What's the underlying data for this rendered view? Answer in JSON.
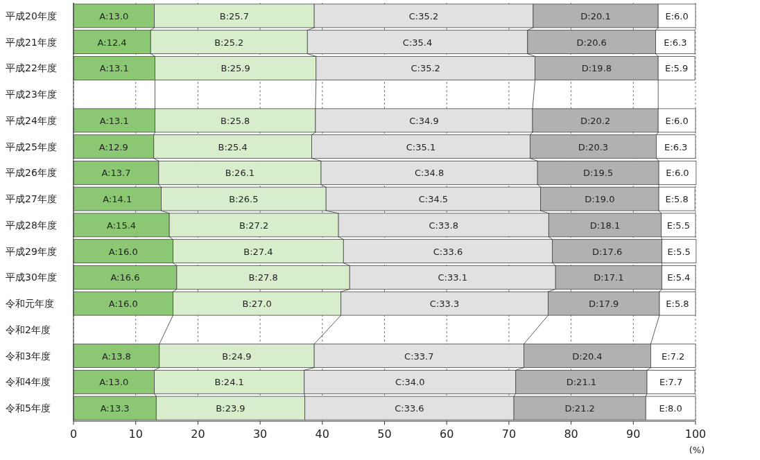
{
  "chart_data": {
    "type": "bar",
    "orientation": "horizontal",
    "stacked": true,
    "grid": "x",
    "categories": [
      "平成20年度",
      "平成21年度",
      "平成22年度",
      "平成23年度",
      "平成24年度",
      "平成25年度",
      "平成26年度",
      "平成27年度",
      "平成28年度",
      "平成29年度",
      "平成30年度",
      "令和元年度",
      "令和2年度",
      "令和3年度",
      "令和4年度",
      "令和5年度"
    ],
    "xlabel": "(%)",
    "xlim": [
      0,
      100
    ],
    "xticks": [
      0,
      10,
      20,
      30,
      40,
      50,
      60,
      70,
      80,
      90,
      100
    ],
    "series": [
      {
        "color": "#8cc873",
        "values": [
          13.0,
          12.4,
          13.1,
          null,
          13.1,
          12.9,
          13.7,
          14.1,
          15.4,
          16.0,
          16.6,
          16.0,
          null,
          13.8,
          13.0,
          13.3
        ],
        "value_labels": [
          "A:13.0",
          "A:12.4",
          "A:13.1",
          null,
          "A:13.1",
          "A:12.9",
          "A:13.7",
          "A:14.1",
          "A:15.4",
          "A:16.0",
          "A:16.6",
          "A:16.0",
          null,
          "A:13.8",
          "A:13.0",
          "A:13.3"
        ]
      },
      {
        "color": "#d7edcb",
        "values": [
          25.7,
          25.2,
          25.9,
          null,
          25.8,
          25.4,
          26.1,
          26.5,
          27.2,
          27.4,
          27.8,
          27.0,
          null,
          24.9,
          24.1,
          23.9
        ],
        "value_labels": [
          "B:25.7",
          "B:25.2",
          "B:25.9",
          null,
          "B:25.8",
          "B:25.4",
          "B:26.1",
          "B:26.5",
          "B:27.2",
          "B:27.4",
          "B:27.8",
          "B:27.0",
          null,
          "B:24.9",
          "B:24.1",
          "B:23.9"
        ]
      },
      {
        "color": "#e1e1e1",
        "values": [
          35.2,
          35.4,
          35.2,
          null,
          34.9,
          35.1,
          34.8,
          34.5,
          33.8,
          33.6,
          33.1,
          33.3,
          null,
          33.7,
          34.0,
          33.6
        ],
        "value_labels": [
          "C:35.2",
          "C:35.4",
          "C:35.2",
          null,
          "C:34.9",
          "C:35.1",
          "C:34.8",
          "C:34.5",
          "C:33.8",
          "C:33.6",
          "C:33.1",
          "C:33.3",
          null,
          "C:33.7",
          "C:34.0",
          "C:33.6"
        ]
      },
      {
        "color": "#b1b1b1",
        "values": [
          20.1,
          20.6,
          19.8,
          null,
          20.2,
          20.3,
          19.5,
          19.0,
          18.1,
          17.6,
          17.1,
          17.9,
          null,
          20.4,
          21.1,
          21.2
        ],
        "value_labels": [
          "D:20.1",
          "D:20.6",
          "D:19.8",
          null,
          "D:20.2",
          "D:20.3",
          "D:19.5",
          "D:19.0",
          "D:18.1",
          "D:17.6",
          "D:17.1",
          "D:17.9",
          null,
          "D:20.4",
          "D:21.1",
          "D:21.2"
        ]
      },
      {
        "color": "#ffffff",
        "values": [
          6.0,
          6.3,
          5.9,
          null,
          6.0,
          6.3,
          6.0,
          5.8,
          5.5,
          5.5,
          5.4,
          5.8,
          null,
          7.2,
          7.7,
          8.0
        ],
        "value_labels": [
          "E:6.0",
          "E:6.3",
          "E:5.9",
          null,
          "E:6.0",
          "E:6.3",
          "E:6.0",
          "E:5.8",
          "E:5.5",
          "E:5.5",
          "E:5.4",
          "E:5.8",
          null,
          "E:7.2",
          "E:7.7",
          "E:8.0"
        ]
      }
    ]
  }
}
